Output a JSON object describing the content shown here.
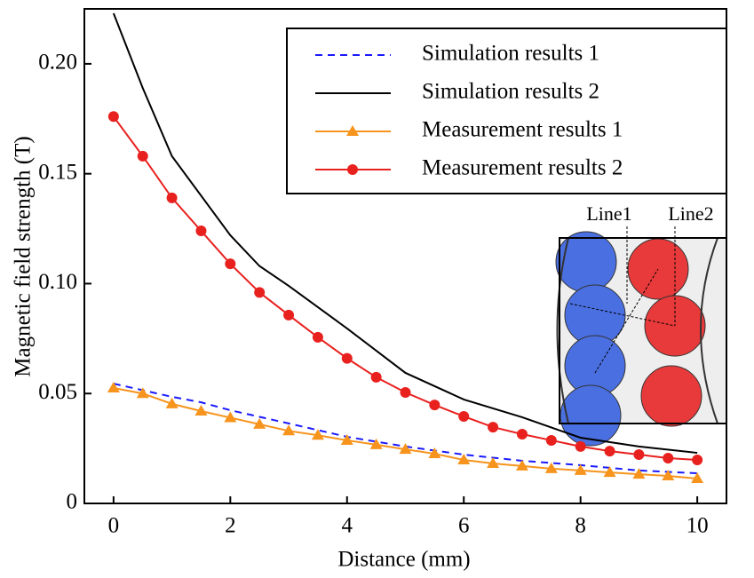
{
  "chart_data": {
    "type": "line",
    "xlabel": "Distance (mm)",
    "ylabel": "Magnetic field strength (T)",
    "xlim": [
      -0.5,
      10.5
    ],
    "ylim": [
      0,
      0.225
    ],
    "xticks": [
      0,
      2,
      4,
      6,
      8,
      10
    ],
    "yticks": [
      0,
      0.05,
      {
        "value": 0.1,
        "label": "0.10"
      },
      0.15,
      {
        "value": 0.2,
        "label": "0.20"
      }
    ],
    "legend": "upper right",
    "series": [
      {
        "name": "Simulation results 1",
        "color": "#1a1aff",
        "style": "dashed",
        "marker": "none",
        "x": [
          0,
          1,
          1.5,
          2,
          3,
          4,
          5,
          6,
          7,
          8,
          9,
          10
        ],
        "values": [
          0.0545,
          0.0485,
          0.046,
          0.0424,
          0.0364,
          0.0303,
          0.0259,
          0.0222,
          0.0194,
          0.0174,
          0.015,
          0.0137
        ]
      },
      {
        "name": "Simulation results 2",
        "color": "#000000",
        "style": "solid",
        "marker": "none",
        "x": [
          0,
          0.5,
          1,
          2,
          2.5,
          3,
          4,
          5,
          6,
          7,
          8,
          9,
          10
        ],
        "values": [
          0.223,
          0.189,
          0.158,
          0.122,
          0.108,
          0.099,
          0.0796,
          0.0594,
          0.0473,
          0.0392,
          0.0299,
          0.0259,
          0.023
        ]
      },
      {
        "name": "Measurement results 1",
        "color": "#f7941d",
        "style": "solid",
        "marker": "triangle",
        "x": [
          0,
          0.5,
          1,
          1.5,
          2,
          2.5,
          3,
          3.5,
          4,
          4.5,
          5,
          5.5,
          6,
          6.5,
          7,
          7.5,
          8,
          8.5,
          9,
          9.5,
          10
        ],
        "values": [
          0.0525,
          0.05,
          0.0453,
          0.042,
          0.039,
          0.036,
          0.033,
          0.031,
          0.0287,
          0.0267,
          0.0246,
          0.0226,
          0.0198,
          0.0182,
          0.017,
          0.0158,
          0.015,
          0.0141,
          0.0133,
          0.0125,
          0.0113
        ]
      },
      {
        "name": "Measurement results 2",
        "color": "#e8201e",
        "style": "solid",
        "marker": "circle",
        "x": [
          0,
          0.5,
          1,
          1.5,
          2,
          2.5,
          3,
          3.5,
          4,
          4.5,
          5,
          5.5,
          6,
          6.5,
          7,
          7.5,
          8,
          8.5,
          9,
          9.5,
          10
        ],
        "values": [
          0.176,
          0.158,
          0.139,
          0.124,
          0.109,
          0.096,
          0.0857,
          0.0756,
          0.066,
          0.0574,
          0.0505,
          0.0448,
          0.0396,
          0.0347,
          0.0315,
          0.0287,
          0.0259,
          0.0238,
          0.0222,
          0.0206,
          0.0198
        ]
      }
    ]
  },
  "inset": {
    "labels": [
      "Line1",
      "Line2"
    ]
  }
}
